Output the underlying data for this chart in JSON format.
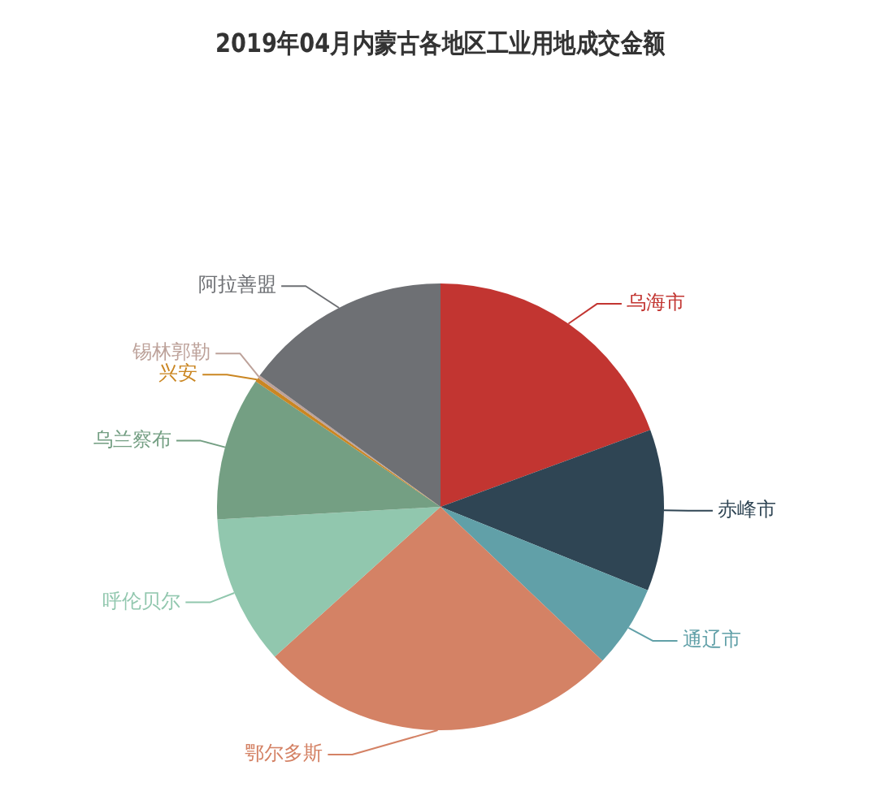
{
  "chart_data": {
    "type": "pie",
    "title": "2019年04月内蒙古各地区工业用地成交金额",
    "categories": [
      "乌海市",
      "赤峰市",
      "通辽市",
      "鄂尔多斯",
      "呼伦贝尔",
      "乌兰察布",
      "兴安",
      "锡林郭勒",
      "阿拉善盟"
    ],
    "values": [
      19.4,
      11.7,
      6.0,
      26.2,
      10.8,
      10.4,
      0.3,
      0.2,
      15.0
    ],
    "colors": [
      "#c23531",
      "#2f4554",
      "#61a0a8",
      "#d48265",
      "#91c7ae",
      "#749f83",
      "#ca8622",
      "#bda29a",
      "#6e7074"
    ]
  }
}
